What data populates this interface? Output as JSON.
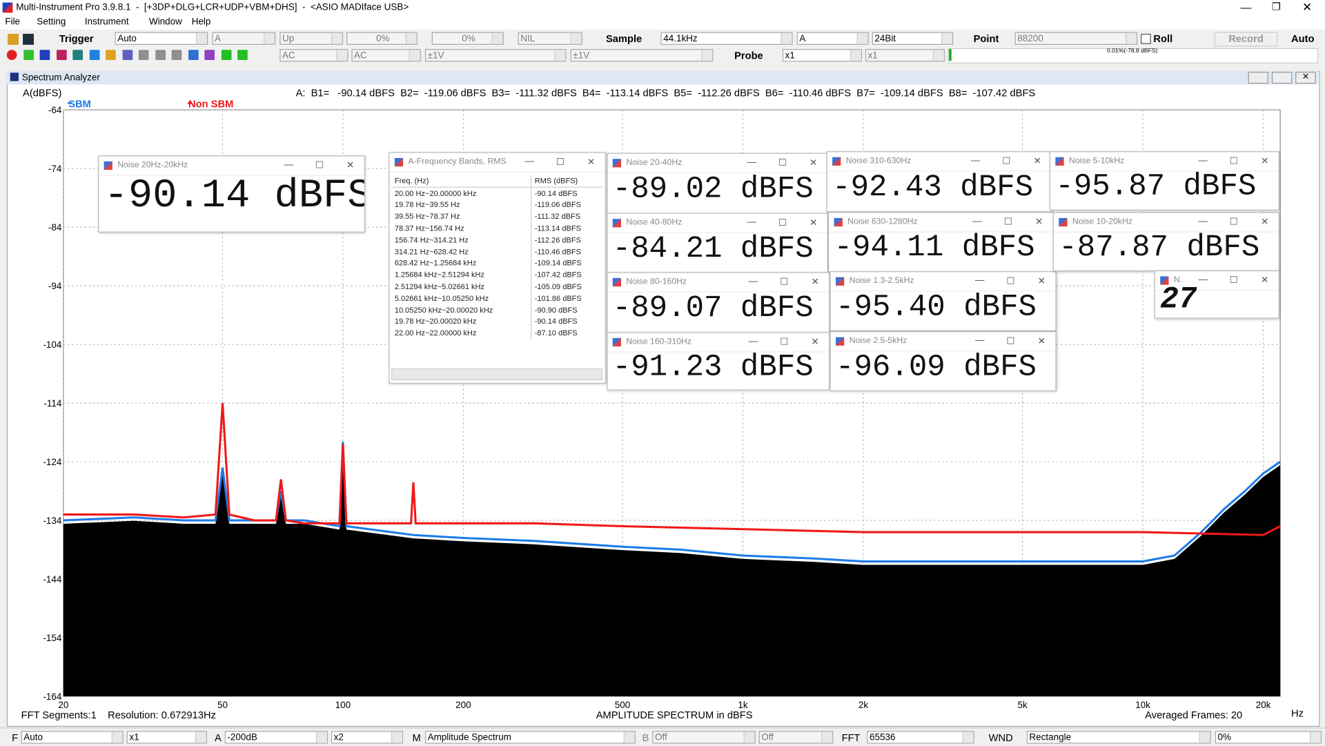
{
  "title_bar": {
    "title": "Multi-Instrument Pro 3.9.8.1  -  [+3DP+DLG+LCR+UDP+VBM+DHS]  -  <ASIO MADIface USB>"
  },
  "menu": [
    "File",
    "Setting",
    "Instrument",
    "Window",
    "Help"
  ],
  "toolbar": {
    "trigger_label": "Trigger",
    "trigger": "Auto",
    "channel": "A",
    "edge": "Up",
    "level1": "0%",
    "level2": "0%",
    "source": "NIL",
    "sample_label": "Sample",
    "sample": "44.1kHz",
    "sample_channel": "A",
    "bits": "24Bit",
    "point_label": "Point",
    "point": "88200",
    "roll": "Roll",
    "record": "Record",
    "auto": "Auto",
    "coupling_a": "AC",
    "coupling_b": "AC",
    "range_a": "±1V",
    "range_b": "±1V",
    "probe_label": "Probe",
    "probe_a": "x1",
    "probe_b": "x1",
    "meter": "0.01%(-78.8 dBFS)"
  },
  "analyzer": {
    "title": "Spectrum Analyzer",
    "readout": "A:  B1=   -90.14 dBFS  B2=  -119.06 dBFS  B3=  -111.32 dBFS  B4=  -113.14 dBFS  B5=  -112.26 dBFS  B6=  -110.46 dBFS  B7=  -109.14 dBFS  B8=  -107.42 dBFS",
    "status_left": "FFT Segments:1    Resolution: 0.672913Hz",
    "status_right": "Averaged Frames: 20"
  },
  "chart_data": {
    "type": "line",
    "ylabel": "A(dBFS)",
    "xlabel": "AMPLITUDE SPECTRUM in dBFS",
    "xunit": "Hz",
    "log_x": true,
    "grid": true,
    "fill_below": "#000000",
    "xlim": [
      20,
      22050
    ],
    "ylim": [
      -164,
      -64
    ],
    "xticks": [
      20,
      50,
      100,
      200,
      500,
      {
        "value": 1000,
        "label": "1k"
      },
      {
        "value": 2000,
        "label": "2k"
      },
      {
        "value": 5000,
        "label": "5k"
      },
      {
        "value": 10000,
        "label": "10k"
      },
      {
        "value": 20000,
        "label": "20k"
      }
    ],
    "yticks": [
      -64,
      -74,
      -84,
      -94,
      -104,
      -114,
      -124,
      -134,
      -144,
      -154,
      -164
    ],
    "series": [
      {
        "name": "SBM",
        "color": "#1e7be8",
        "x": [
          20,
          30,
          40,
          48,
          50,
          52,
          60,
          68,
          70,
          72,
          80,
          98,
          100,
          102,
          150,
          200,
          300,
          500,
          700,
          1000,
          1500,
          2000,
          3000,
          5000,
          7000,
          10000,
          12000,
          14000,
          16000,
          18000,
          20000,
          22050
        ],
        "values": [
          -134,
          -133.5,
          -134,
          -134,
          -125,
          -134,
          -134,
          -134,
          -129,
          -134,
          -134,
          -135,
          -120.6,
          -135,
          -136.5,
          -137,
          -137.5,
          -138.5,
          -139,
          -140,
          -140.5,
          -141,
          -141,
          -141,
          -141,
          -141,
          -140,
          -136,
          -132,
          -129,
          -126,
          -124
        ]
      },
      {
        "name": "Non SBM",
        "color": "#f01818",
        "x": [
          20,
          30,
          40,
          48,
          50,
          52,
          60,
          68,
          70,
          72,
          80,
          98,
          100,
          102,
          120,
          148,
          150,
          152,
          200,
          300,
          500,
          1000,
          2000,
          5000,
          10000,
          20000,
          22050
        ],
        "values": [
          -133,
          -133,
          -133.5,
          -133,
          -114,
          -133,
          -134,
          -134,
          -127,
          -134,
          -134.5,
          -134.5,
          -121,
          -134.5,
          -134.5,
          -134.5,
          -127.5,
          -134.5,
          -134.5,
          -134.5,
          -135,
          -135.5,
          -136,
          -136,
          -136,
          -136.5,
          -135
        ]
      }
    ]
  },
  "meters": [
    {
      "title": "Noise 20Hz-20kHz",
      "value": "-90.14 dBFS"
    },
    {
      "title": "Noise 20-40Hz",
      "value": "-89.02 dBFS"
    },
    {
      "title": "Noise 40-80Hz",
      "value": "-84.21 dBFS"
    },
    {
      "title": "Noise 80-160Hz",
      "value": "-89.07 dBFS"
    },
    {
      "title": "Noise 160-310Hz",
      "value": "-91.23 dBFS"
    },
    {
      "title": "Noise 310-630Hz",
      "value": "-92.43 dBFS"
    },
    {
      "title": "Noise 630-1280Hz",
      "value": "-94.11 dBFS"
    },
    {
      "title": "Noise 1.3-2.5kHz",
      "value": "-95.40 dBFS"
    },
    {
      "title": "Noise 2.5-5kHz",
      "value": "-96.09 dBFS"
    },
    {
      "title": "Noise 5-10kHz",
      "value": "-95.87 dBFS"
    },
    {
      "title": "Noise 10-20kHz",
      "value": "-87.87 dBFS"
    },
    {
      "title": "N.",
      "value": "27"
    }
  ],
  "band_table": {
    "title": "A-Frequency Bands, RMS",
    "columns": [
      "Freq. (Hz)",
      "RMS (dBFS)"
    ],
    "rows": [
      [
        "20.00 Hz~20.00000 kHz",
        "-90.14 dBFS"
      ],
      [
        "19.78 Hz~39.55 Hz",
        "-119.06 dBFS"
      ],
      [
        "39.55 Hz~78.37 Hz",
        "-111.32 dBFS"
      ],
      [
        "78.37 Hz~156.74 Hz",
        "-113.14 dBFS"
      ],
      [
        "156.74 Hz~314.21 Hz",
        "-112.26 dBFS"
      ],
      [
        "314.21 Hz~628.42 Hz",
        "-110.46 dBFS"
      ],
      [
        "628.42 Hz~1.25684 kHz",
        "-109.14 dBFS"
      ],
      [
        "1.25684 kHz~2.51294 kHz",
        "-107.42 dBFS"
      ],
      [
        "2.51294 kHz~5.02661 kHz",
        "-105.09 dBFS"
      ],
      [
        "5.02661 kHz~10.05250 kHz",
        "-101.86 dBFS"
      ],
      [
        "10.05250 kHz~20.00020 kHz",
        "-90.90 dBFS"
      ],
      [
        "19.78 Hz~20.00020 kHz",
        "-90.14 dBFS"
      ],
      [
        "22.00 Hz~22.00000 kHz",
        "-87.10 dBFS"
      ]
    ]
  },
  "bottom_bar": {
    "f_label": "F",
    "f": "Auto",
    "f_mult": "x1",
    "a_label": "A",
    "a": "-200dB",
    "a_mult": "x2",
    "m_label": "M",
    "m": "Amplitude Spectrum",
    "b_label": "B",
    "b1": "Off",
    "b2": "Off",
    "fft_label": "FFT",
    "fft": "65536",
    "wnd_label": "WND",
    "wnd": "Rectangle",
    "percent": "0%"
  }
}
